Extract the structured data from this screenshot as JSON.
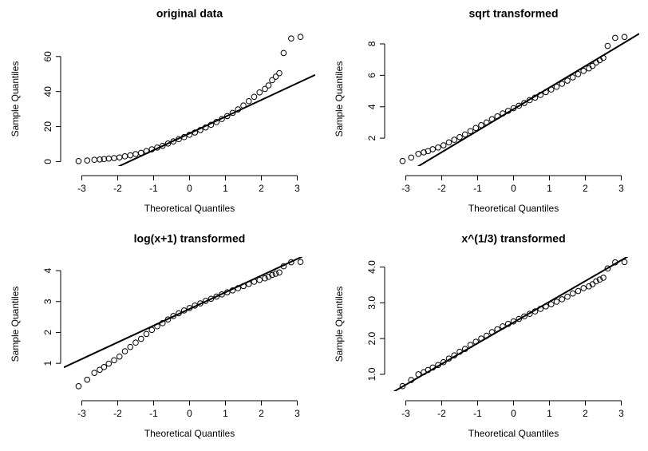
{
  "chart_data": [
    {
      "type": "qq",
      "title": "original data",
      "xlabel": "Theoretical Quantiles",
      "ylabel": "Sample Quantiles",
      "x": [
        -3.09,
        -2.85,
        -2.65,
        -2.5,
        -2.38,
        -2.25,
        -2.1,
        -1.95,
        -1.8,
        -1.65,
        -1.5,
        -1.35,
        -1.2,
        -1.05,
        -0.9,
        -0.75,
        -0.6,
        -0.45,
        -0.3,
        -0.15,
        0,
        0.15,
        0.3,
        0.45,
        0.6,
        0.75,
        0.9,
        1.05,
        1.2,
        1.35,
        1.5,
        1.65,
        1.8,
        1.95,
        2.1,
        2.2,
        2.3,
        2.4,
        2.5,
        2.62,
        2.83,
        3.09
      ],
      "values": [
        0.3,
        0.6,
        1.0,
        1.2,
        1.4,
        1.7,
        2.0,
        2.4,
        3.0,
        3.6,
        4.3,
        5.0,
        6.0,
        7.0,
        8.0,
        9.0,
        10.3,
        11.5,
        12.8,
        14.0,
        15.3,
        16.6,
        18.0,
        19.5,
        21.0,
        22.6,
        24.3,
        26.0,
        27.8,
        29.8,
        32.0,
        34.5,
        37.0,
        39.5,
        41.5,
        43.5,
        46.5,
        48.5,
        50.5,
        62,
        70.3,
        71.2
      ],
      "qqline": {
        "intercept": 16.1,
        "slope": 9.55
      },
      "xlim": [
        -3.5,
        3.5
      ],
      "ylim": [
        -2.54,
        74.04
      ],
      "xticks": [
        -3,
        -2,
        -1,
        0,
        1,
        2,
        3
      ],
      "yticks": [
        0,
        20,
        40,
        60
      ]
    },
    {
      "type": "qq",
      "title": "sqrt transformed",
      "xlabel": "Theoretical Quantiles",
      "ylabel": "Sample Quantiles",
      "x": [
        -3.09,
        -2.85,
        -2.65,
        -2.5,
        -2.38,
        -2.25,
        -2.1,
        -1.95,
        -1.8,
        -1.65,
        -1.5,
        -1.35,
        -1.2,
        -1.05,
        -0.9,
        -0.75,
        -0.6,
        -0.45,
        -0.3,
        -0.15,
        0,
        0.15,
        0.3,
        0.45,
        0.6,
        0.75,
        0.9,
        1.05,
        1.2,
        1.35,
        1.5,
        1.65,
        1.8,
        1.95,
        2.1,
        2.2,
        2.3,
        2.4,
        2.5,
        2.62,
        2.83,
        3.09
      ],
      "values": [
        0.55,
        0.77,
        1.0,
        1.1,
        1.18,
        1.3,
        1.41,
        1.55,
        1.73,
        1.9,
        2.07,
        2.24,
        2.45,
        2.65,
        2.83,
        3.0,
        3.21,
        3.39,
        3.58,
        3.74,
        3.91,
        4.07,
        4.24,
        4.42,
        4.58,
        4.75,
        4.93,
        5.1,
        5.27,
        5.46,
        5.66,
        5.87,
        6.08,
        6.28,
        6.44,
        6.6,
        6.82,
        6.96,
        7.11,
        7.87,
        8.38,
        8.44
      ],
      "qqline": {
        "intercept": 3.85,
        "slope": 1.37
      },
      "xlim": [
        -3.5,
        3.5
      ],
      "ylim": [
        0.23,
        8.76
      ],
      "xticks": [
        -3,
        -2,
        -1,
        0,
        1,
        2,
        3
      ],
      "yticks": [
        2,
        4,
        6,
        8
      ]
    },
    {
      "type": "qq",
      "title": "log(x+1) transformed",
      "xlabel": "Theoretical Quantiles",
      "ylabel": "Sample Quantiles",
      "x": [
        -3.09,
        -2.85,
        -2.65,
        -2.5,
        -2.38,
        -2.25,
        -2.1,
        -1.95,
        -1.8,
        -1.65,
        -1.5,
        -1.35,
        -1.2,
        -1.05,
        -0.9,
        -0.75,
        -0.6,
        -0.45,
        -0.3,
        -0.15,
        0,
        0.15,
        0.3,
        0.45,
        0.6,
        0.75,
        0.9,
        1.05,
        1.2,
        1.35,
        1.5,
        1.65,
        1.8,
        1.95,
        2.1,
        2.2,
        2.3,
        2.4,
        2.5,
        2.62,
        2.83,
        3.09
      ],
      "values": [
        0.26,
        0.47,
        0.69,
        0.79,
        0.88,
        0.99,
        1.1,
        1.22,
        1.39,
        1.53,
        1.67,
        1.79,
        1.95,
        2.08,
        2.2,
        2.3,
        2.42,
        2.53,
        2.62,
        2.71,
        2.79,
        2.87,
        2.94,
        3.02,
        3.09,
        3.16,
        3.23,
        3.3,
        3.36,
        3.43,
        3.5,
        3.57,
        3.64,
        3.7,
        3.75,
        3.8,
        3.86,
        3.9,
        3.94,
        4.14,
        4.27,
        4.28
      ],
      "qqline": {
        "intercept": 2.76,
        "slope": 0.54
      },
      "xlim": [
        -3.5,
        3.5
      ],
      "ylim": [
        0.1,
        4.44
      ],
      "xticks": [
        -3,
        -2,
        -1,
        0,
        1,
        2,
        3
      ],
      "yticks": [
        1,
        2,
        3,
        4
      ]
    },
    {
      "type": "qq",
      "title": "x^(1/3) transformed",
      "xlabel": "Theoretical Quantiles",
      "ylabel": "Sample Quantiles",
      "x": [
        -3.09,
        -2.85,
        -2.65,
        -2.5,
        -2.38,
        -2.25,
        -2.1,
        -1.95,
        -1.8,
        -1.65,
        -1.5,
        -1.35,
        -1.2,
        -1.05,
        -0.9,
        -0.75,
        -0.6,
        -0.45,
        -0.3,
        -0.15,
        0,
        0.15,
        0.3,
        0.45,
        0.6,
        0.75,
        0.9,
        1.05,
        1.2,
        1.35,
        1.5,
        1.65,
        1.8,
        1.95,
        2.1,
        2.2,
        2.3,
        2.4,
        2.5,
        2.62,
        2.83,
        3.09
      ],
      "values": [
        0.67,
        0.84,
        1.0,
        1.06,
        1.12,
        1.19,
        1.26,
        1.34,
        1.44,
        1.53,
        1.63,
        1.71,
        1.82,
        1.91,
        2.0,
        2.08,
        2.18,
        2.26,
        2.34,
        2.41,
        2.48,
        2.55,
        2.62,
        2.69,
        2.76,
        2.83,
        2.9,
        2.96,
        3.03,
        3.1,
        3.17,
        3.26,
        3.33,
        3.41,
        3.46,
        3.52,
        3.6,
        3.65,
        3.7,
        3.96,
        4.13,
        4.14
      ],
      "qqline": {
        "intercept": 2.45,
        "slope": 0.58
      },
      "xlim": [
        -3.5,
        3.5
      ],
      "ylim": [
        0.53,
        4.28
      ],
      "xticks": [
        -3,
        -2,
        -1,
        0,
        1,
        2,
        3
      ],
      "yticks": [
        {
          "value": 1,
          "label": "1.0"
        },
        {
          "value": 2,
          "label": "2.0"
        },
        {
          "value": 3,
          "label": "3.0"
        },
        {
          "value": 4,
          "label": "4.0"
        }
      ]
    }
  ]
}
